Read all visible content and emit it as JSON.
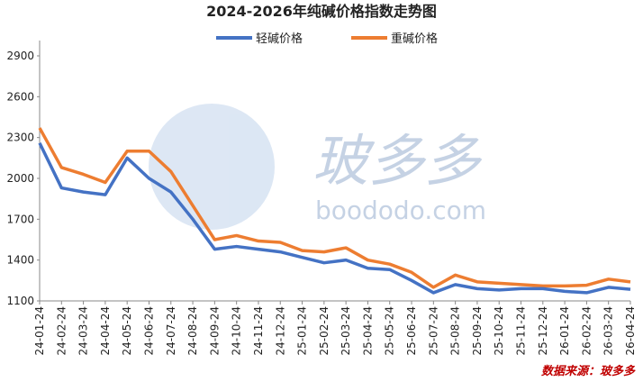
{
  "chart_data": {
    "type": "line",
    "title": "2024-2026年纯碱价格指数走势图",
    "watermark": "玻多多",
    "watermark_url": "boododo.com",
    "source": "数据来源：玻多多",
    "categories": [
      "24-01-24",
      "24-02-24",
      "24-03-24",
      "24-04-24",
      "24-05-24",
      "24-06-24",
      "24-07-24",
      "24-08-24",
      "24-09-24",
      "24-10-24",
      "24-11-24",
      "24-12-24",
      "25-01-24",
      "25-02-24",
      "25-03-24",
      "25-04-24",
      "25-05-24",
      "25-06-24",
      "25-07-24",
      "25-08-24",
      "25-09-24",
      "25-10-24",
      "25-11-24",
      "25-12-24",
      "26-01-24",
      "26-02-24",
      "26-03-24",
      "26-04-24"
    ],
    "series": [
      {
        "name": "轻碱价格",
        "color": "#4472c4",
        "values": [
          2260,
          1930,
          1900,
          1880,
          2150,
          2000,
          1900,
          1700,
          1480,
          1500,
          1480,
          1460,
          1420,
          1380,
          1400,
          1340,
          1330,
          1250,
          1160,
          1220,
          1190,
          1180,
          1190,
          1190,
          1170,
          1160,
          1200,
          1185
        ]
      },
      {
        "name": "重碱价格",
        "color": "#ed7d31",
        "values": [
          2370,
          2080,
          2030,
          1970,
          2200,
          2200,
          2050,
          1800,
          1550,
          1580,
          1540,
          1530,
          1470,
          1460,
          1490,
          1400,
          1370,
          1310,
          1200,
          1290,
          1240,
          1230,
          1220,
          1210,
          1210,
          1215,
          1260,
          1240
        ]
      }
    ],
    "ylim": [
      1100,
      2900
    ],
    "yticks": [
      1100,
      1400,
      1700,
      2000,
      2300,
      2600,
      2900
    ],
    "legend": "top"
  }
}
